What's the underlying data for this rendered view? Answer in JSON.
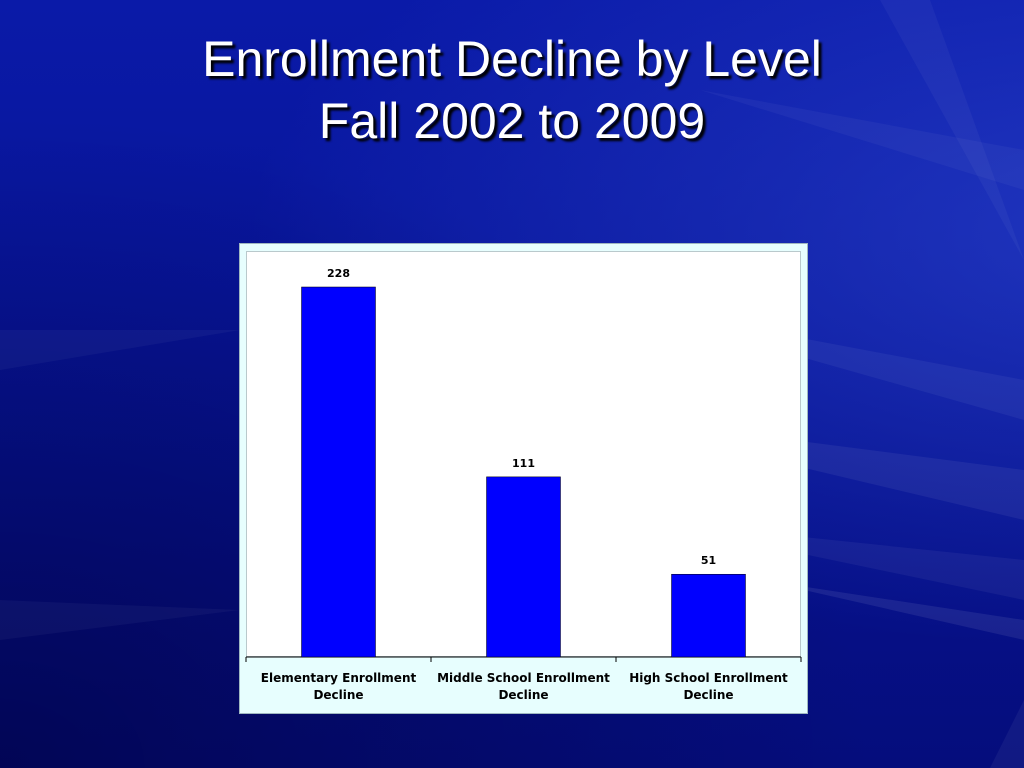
{
  "slide": {
    "title_line1": "Enrollment Decline by Level",
    "title_line2": "Fall 2002 to 2009"
  },
  "colors": {
    "bar": "#0000ff",
    "background": "#06108a",
    "chart_background": "#e7fefe"
  },
  "chart_data": {
    "type": "bar",
    "categories": [
      [
        "Elementary Enrollment",
        "Decline"
      ],
      [
        "Middle School Enrollment",
        "Decline"
      ],
      [
        "High School Enrollment",
        "Decline"
      ]
    ],
    "values": [
      228,
      111,
      51
    ],
    "data_labels": [
      "228",
      "111",
      "51"
    ],
    "ylim": [
      0,
      228
    ],
    "grid": false,
    "legend": "none"
  }
}
